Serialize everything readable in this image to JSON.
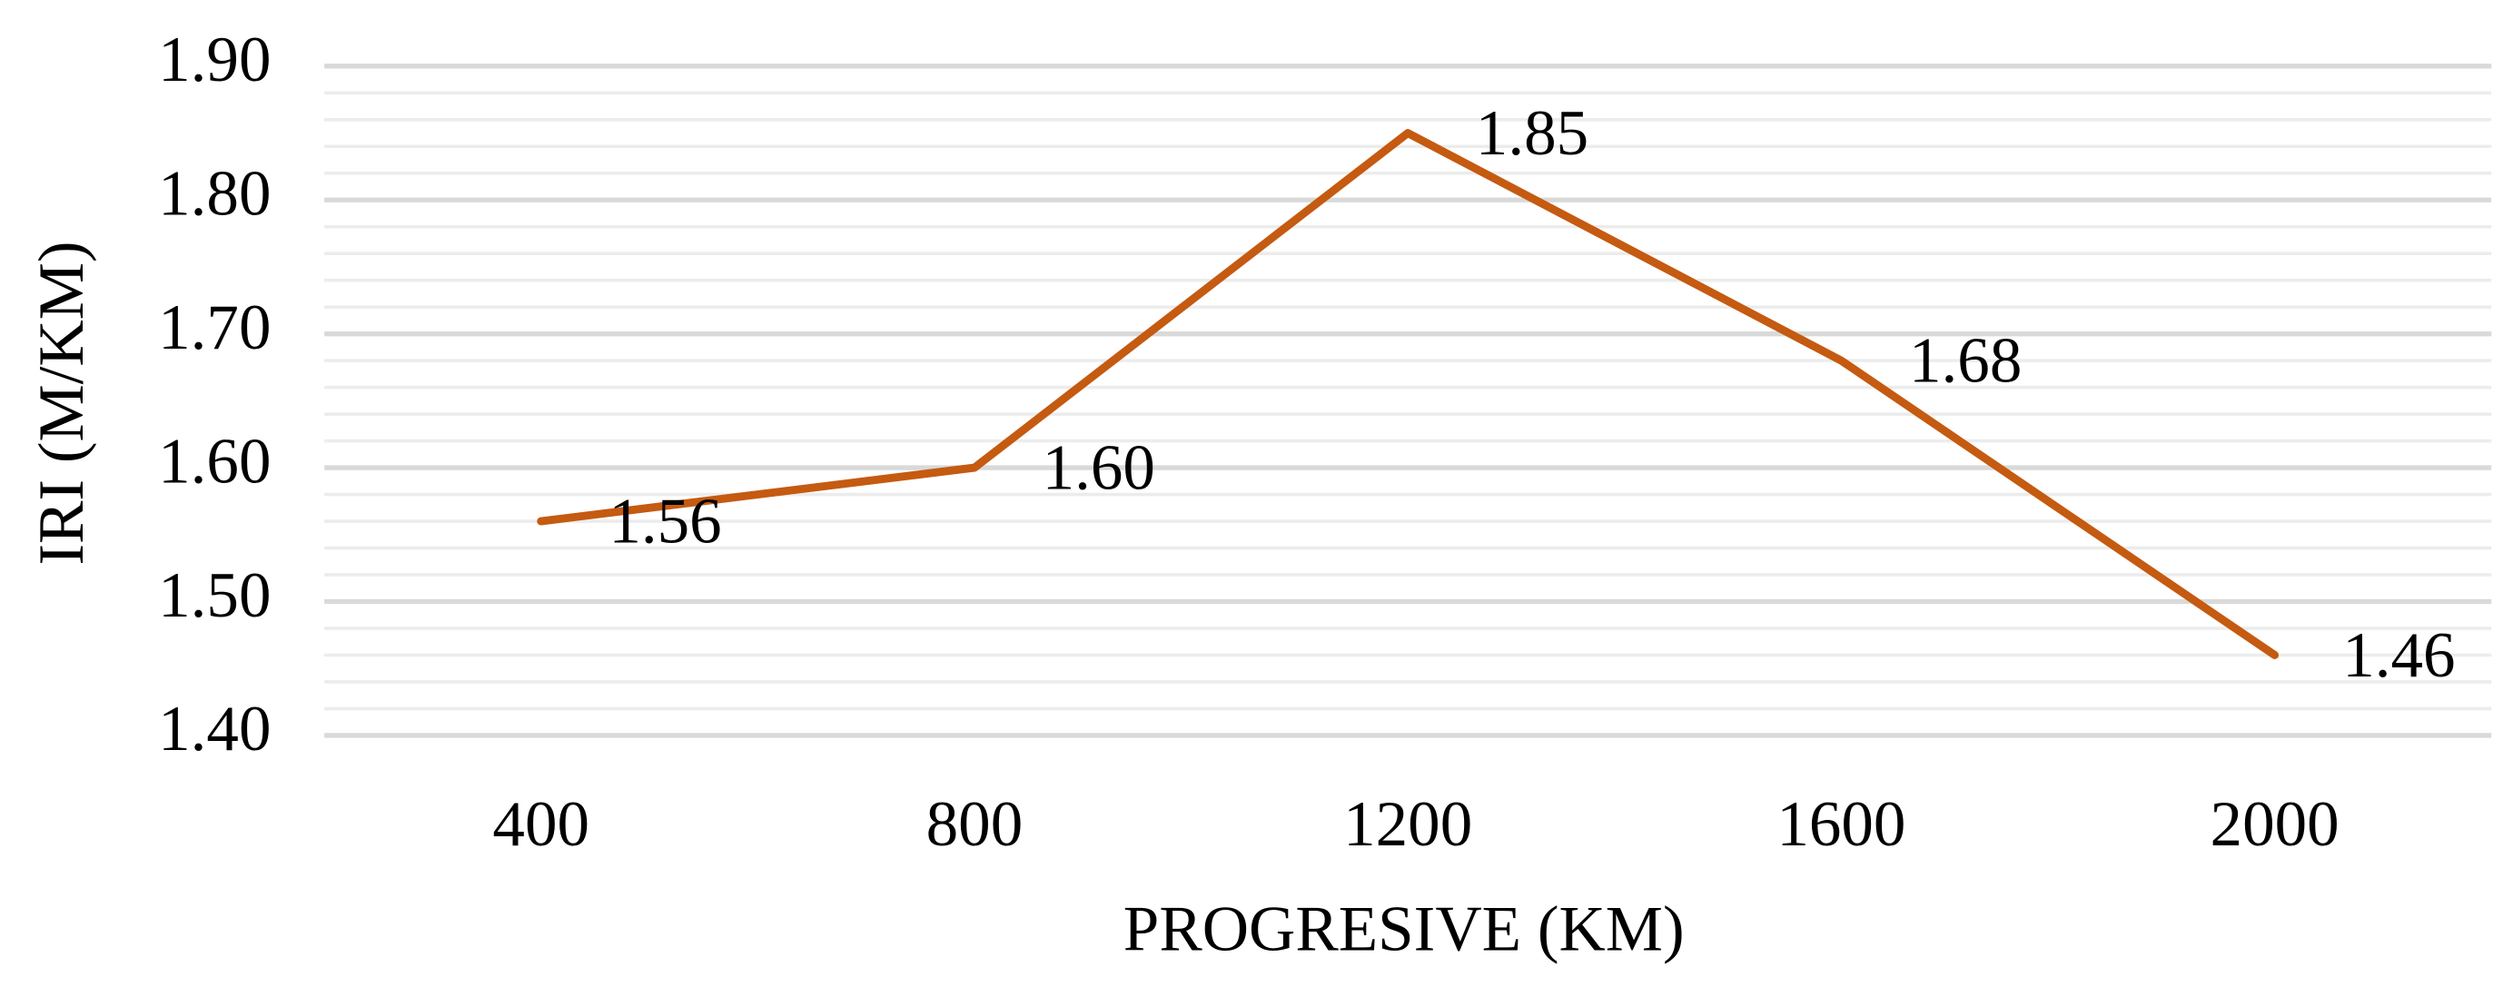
{
  "chart_data": {
    "type": "line",
    "xlabel": "PROGRESIVE (KM)",
    "ylabel": "IRI (M/KM)",
    "categories": [
      "400",
      "800",
      "1200",
      "1600",
      "2000"
    ],
    "series": [
      {
        "name": "IRI",
        "color": "#c55a11",
        "values": [
          1.56,
          1.6,
          1.85,
          1.68,
          1.46
        ],
        "value_labels": [
          "1.56",
          "1.60",
          "1.85",
          "1.68",
          "1.46"
        ]
      }
    ],
    "ylim": [
      1.4,
      1.9
    ],
    "yticks": [
      {
        "value": 1.4,
        "label": "1.40"
      },
      {
        "value": 1.5,
        "label": "1.50"
      },
      {
        "value": 1.6,
        "label": "1.60"
      },
      {
        "value": 1.7,
        "label": "1.70"
      },
      {
        "value": 1.8,
        "label": "1.80"
      },
      {
        "value": 1.9,
        "label": "1.90"
      }
    ],
    "minor_yticks": [
      1.42,
      1.44,
      1.46,
      1.48,
      1.52,
      1.54,
      1.56,
      1.58,
      1.62,
      1.64,
      1.66,
      1.68,
      1.72,
      1.74,
      1.76,
      1.78,
      1.82,
      1.84,
      1.86,
      1.88
    ],
    "grid": true
  }
}
